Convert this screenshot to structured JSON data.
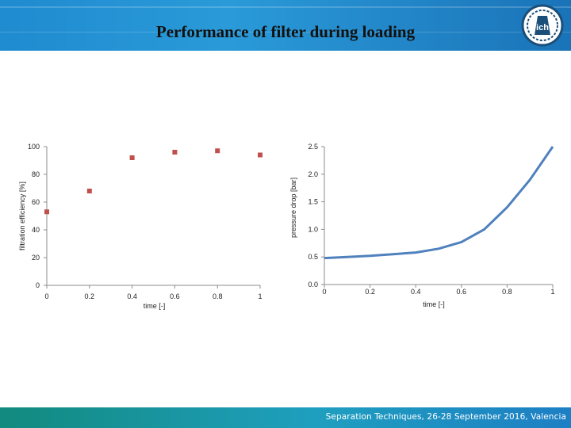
{
  "header": {
    "title": "Performance of filter during loading"
  },
  "footer": {
    "text": "Separation Techniques, 26-28 September 2016, Valencia"
  },
  "colors": {
    "header": "#1f8bd0",
    "markers": "#c0504d",
    "line": "#4f81bd",
    "footer": "#128a7e"
  },
  "logo": {
    "icon": "ich-logo-icon",
    "text": "ich"
  },
  "chart_data": [
    {
      "type": "scatter",
      "xlabel": "time [-]",
      "ylabel": "filtration efficiency [%]",
      "xlim": [
        0,
        1
      ],
      "ylim": [
        0,
        100
      ],
      "xticks": [
        "0",
        "0.2",
        "0.4",
        "0.6",
        "0.8",
        "1"
      ],
      "yticks": [
        "0",
        "20",
        "40",
        "60",
        "80",
        "100"
      ],
      "series": [
        {
          "x": [
            0,
            0.2,
            0.4,
            0.6,
            0.8,
            1.0
          ],
          "y": [
            53,
            68,
            92,
            96,
            97,
            94
          ]
        }
      ],
      "grid": false
    },
    {
      "type": "line",
      "xlabel": "time [-]",
      "ylabel": "pressure drop [bar]",
      "xlim": [
        0,
        1
      ],
      "ylim": [
        0,
        2.5
      ],
      "xticks": [
        "0",
        "0.2",
        "0.4",
        "0.6",
        "0.8",
        "1"
      ],
      "yticks": [
        "0.0",
        "0.5",
        "1.0",
        "1.5",
        "2.0",
        "2.5"
      ],
      "series": [
        {
          "x": [
            0,
            0.1,
            0.2,
            0.3,
            0.4,
            0.5,
            0.6,
            0.7,
            0.8,
            0.9,
            1.0
          ],
          "y": [
            0.48,
            0.5,
            0.52,
            0.55,
            0.58,
            0.65,
            0.77,
            1.0,
            1.4,
            1.9,
            2.5
          ]
        }
      ],
      "grid": false
    }
  ]
}
